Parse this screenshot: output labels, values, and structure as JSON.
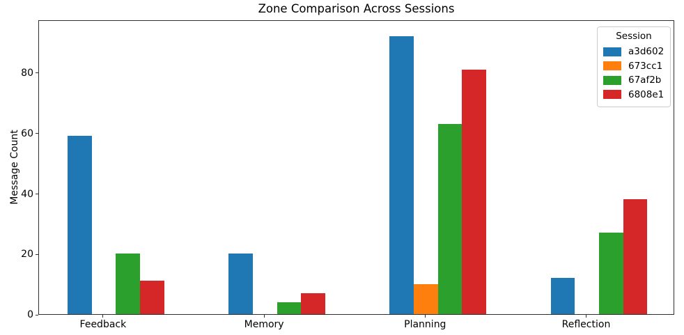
{
  "chart_data": {
    "type": "bar",
    "title": "Zone Comparison Across Sessions",
    "xlabel": "",
    "ylabel": "Message Count",
    "categories": [
      "Feedback",
      "Memory",
      "Planning",
      "Reflection"
    ],
    "series": [
      {
        "name": "a3d602",
        "color": "#1f77b4",
        "values": [
          59,
          20,
          92,
          12
        ]
      },
      {
        "name": "673cc1",
        "color": "#ff7f0e",
        "values": [
          0,
          0,
          10,
          0
        ]
      },
      {
        "name": "67af2b",
        "color": "#2ca02c",
        "values": [
          20,
          4,
          63,
          27
        ]
      },
      {
        "name": "6808e1",
        "color": "#d62728",
        "values": [
          11,
          7,
          81,
          38
        ]
      }
    ],
    "yticks": [
      0,
      20,
      40,
      60,
      80
    ],
    "ylim": [
      0,
      97.5
    ],
    "xlim": [
      -0.402,
      3.547
    ],
    "bar_width": 0.15,
    "bar_offsets": [
      -0.15,
      0,
      0.15,
      0.3
    ],
    "grid": false,
    "legend": {
      "title": "Session",
      "position": "upper right"
    }
  }
}
